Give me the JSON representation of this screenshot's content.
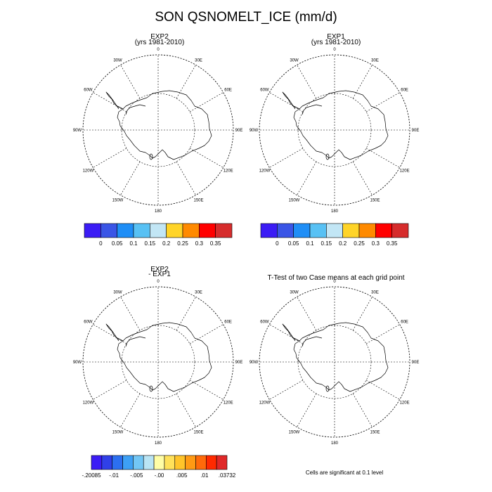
{
  "title": "SON QSNOMELT_ICE (mm/d)",
  "panels": [
    {
      "title_line1": "EXP2",
      "title_line2": "(yrs 1981-2010)"
    },
    {
      "title_line1": "EXP1",
      "title_line2": "(yrs 1981-2010)"
    },
    {
      "title_line1": "EXP2",
      "title_line2": "- EXP1"
    },
    {
      "title_line1": "T-Test of two Case means at each grid point",
      "title_line2": ""
    }
  ],
  "lon_labels": [
    "0",
    "30E",
    "60E",
    "90E",
    "120E",
    "150E",
    "180",
    "150W",
    "120W",
    "90W",
    "60W",
    "30W"
  ],
  "colorbar_abs": {
    "colors": [
      "#3b1cf5",
      "#3a55e6",
      "#1f8ef6",
      "#58c1f4",
      "#c2e6f5",
      "#ffd428",
      "#ff8a00",
      "#ff0000",
      "#d62c2c"
    ],
    "labels": [
      "0",
      "0.05",
      "0.1",
      "0.15",
      "0.2",
      "0.25",
      "0.3",
      "0.35"
    ]
  },
  "colorbar_diff": {
    "colors": [
      "#3b1cf5",
      "#3040e8",
      "#2c6ff0",
      "#3da0f5",
      "#72c6f5",
      "#b9e4f4",
      "#fffda6",
      "#ffe15a",
      "#ffc42a",
      "#ff9a14",
      "#ff6a0a",
      "#ff2a00",
      "#e02828"
    ],
    "labels": [
      "-.20085",
      "-.01",
      "-.005",
      "-.00",
      ".005",
      ".01",
      ".03732"
    ]
  },
  "footnote": "Cells are significant at 0.1 level"
}
